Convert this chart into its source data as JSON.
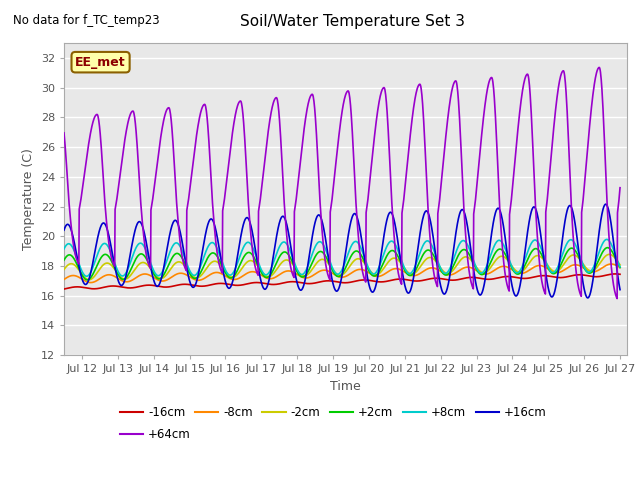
{
  "title": "Soil/Water Temperature Set 3",
  "xlabel": "Time",
  "ylabel": "Temperature (C)",
  "no_data_label": "No data for f_TC_temp23",
  "station_label": "EE_met",
  "ylim": [
    12,
    33
  ],
  "yticks": [
    12,
    14,
    16,
    18,
    20,
    22,
    24,
    26,
    28,
    30,
    32
  ],
  "xlim_days": [
    11.5,
    27.2
  ],
  "xtick_days": [
    12,
    13,
    14,
    15,
    16,
    17,
    18,
    19,
    20,
    21,
    22,
    23,
    24,
    25,
    26,
    27
  ],
  "xtick_labels": [
    "Jul 12",
    "Jul 13",
    "Jul 14",
    "Jul 15",
    "Jul 16",
    "Jul 17",
    "Jul 18",
    "Jul 19",
    "Jul 20",
    "Jul 21",
    "Jul 22",
    "Jul 23",
    "Jul 24",
    "Jul 25",
    "Jul 26",
    "Jul 27"
  ],
  "background_color": "#e8e8e8",
  "fig_background": "#ffffff",
  "grid_color": "#ffffff",
  "series": {
    "-16cm": {
      "color": "#cc0000",
      "lw": 1.2
    },
    "-8cm": {
      "color": "#ff8800",
      "lw": 1.2
    },
    "-2cm": {
      "color": "#cccc00",
      "lw": 1.2
    },
    "+2cm": {
      "color": "#00cc00",
      "lw": 1.2
    },
    "+8cm": {
      "color": "#00cccc",
      "lw": 1.2
    },
    "+16cm": {
      "color": "#0000cc",
      "lw": 1.2
    },
    "+64cm": {
      "color": "#9900cc",
      "lw": 1.2
    }
  },
  "legend_order": [
    "-16cm",
    "-8cm",
    "-2cm",
    "+2cm",
    "+8cm",
    "+16cm",
    "+64cm"
  ],
  "legend_ncol_row1": 6,
  "legend_ncol_row2": 1
}
